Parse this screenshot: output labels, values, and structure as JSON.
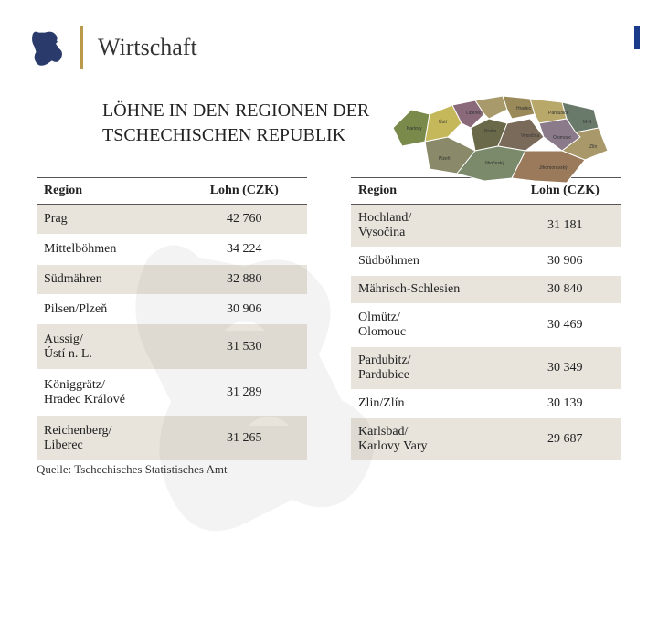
{
  "header": {
    "title": "Wirtschaft"
  },
  "subtitle": "LÖHNE IN DEN REGIONEN DER TSCHECHISCHEN REPUBLIK",
  "columns": {
    "region": "Region",
    "wage": "Lohn (CZK)"
  },
  "table_left": [
    {
      "region": "Prag",
      "wage": "42 760",
      "shade": true
    },
    {
      "region": "Mittelböhmen",
      "wage": "34 224",
      "shade": false
    },
    {
      "region": "Südmähren",
      "wage": "32 880",
      "shade": true
    },
    {
      "region": "Pilsen/Plzeň",
      "wage": "30 906",
      "shade": false
    },
    {
      "region": "Aussig/\nÚstí n. L.",
      "wage": "31 530",
      "shade": true
    },
    {
      "region": "Königgrätz/\nHradec Králové",
      "wage": "31 289",
      "shade": false
    },
    {
      "region": "Reichenberg/\nLiberec",
      "wage": "31 265",
      "shade": true
    }
  ],
  "table_right": [
    {
      "region": "Hochland/\nVysočina",
      "wage": "31 181",
      "shade": true
    },
    {
      "region": "Südböhmen",
      "wage": "30 906",
      "shade": false
    },
    {
      "region": "Mährisch-Schlesien",
      "wage": "30 840",
      "shade": true
    },
    {
      "region": "Olmütz/\nOlomouc",
      "wage": "30 469",
      "shade": false
    },
    {
      "region": "Pardubitz/\nPardubice",
      "wage": "30 349",
      "shade": true
    },
    {
      "region": "Zlin/Zlín",
      "wage": "30 139",
      "shade": false
    },
    {
      "region": "Karlsbad/\nKarlovy Vary",
      "wage": "29 687",
      "shade": true
    }
  ],
  "source": "Quelle: Tschechisches Statistisches Amt",
  "colors": {
    "accent": "#1a3a8a",
    "gold": "#b89a4a",
    "shade_bg": "#e8e4dc",
    "map_colors": [
      "#7a8a4a",
      "#c4b85a",
      "#8a6a7a",
      "#a89a6a",
      "#6a6a4a",
      "#9a8a5a",
      "#7a6a5a",
      "#b8a86a",
      "#8a7a8a",
      "#6a7a6a",
      "#a8986a",
      "#8a8a6a",
      "#7a8a6a",
      "#9a7a5a"
    ]
  }
}
